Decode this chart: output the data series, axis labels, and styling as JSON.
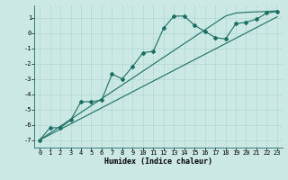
{
  "xlabel": "Humidex (Indice chaleur)",
  "bg_color": "#cce8e4",
  "line_color": "#1a6e64",
  "grid_color": "#b0d8d0",
  "spine_color": "#1a6e64",
  "xlim": [
    -0.5,
    23.5
  ],
  "ylim": [
    -7.5,
    1.8
  ],
  "xticks": [
    0,
    1,
    2,
    3,
    4,
    5,
    6,
    7,
    8,
    9,
    10,
    11,
    12,
    13,
    14,
    15,
    16,
    17,
    18,
    19,
    20,
    21,
    22,
    23
  ],
  "yticks": [
    -7,
    -6,
    -5,
    -4,
    -3,
    -2,
    -1,
    0,
    1
  ],
  "line1_x": [
    0,
    1,
    2,
    3,
    4,
    5,
    6,
    7,
    8,
    9,
    10,
    11,
    12,
    13,
    14,
    15,
    16,
    17,
    18,
    19,
    20,
    21,
    22,
    23
  ],
  "line1_y": [
    -7.0,
    -6.2,
    -6.2,
    -5.7,
    -4.5,
    -4.5,
    -4.4,
    -2.7,
    -3.0,
    -2.2,
    -1.3,
    -1.2,
    0.3,
    1.1,
    1.1,
    0.5,
    0.1,
    -0.3,
    -0.4,
    0.6,
    0.7,
    0.9,
    1.3,
    1.4
  ],
  "line2_x": [
    0,
    1,
    2,
    3,
    4,
    5,
    6,
    7,
    8,
    9,
    10,
    11,
    12,
    13,
    14,
    15,
    16,
    17,
    18,
    19,
    20,
    21,
    22,
    23
  ],
  "line2_y": [
    -7.0,
    -6.65,
    -6.3,
    -5.95,
    -5.6,
    -5.25,
    -4.9,
    -4.55,
    -4.2,
    -3.85,
    -3.5,
    -3.15,
    -2.8,
    -2.45,
    -2.1,
    -1.75,
    -1.4,
    -1.05,
    -0.7,
    -0.35,
    0.0,
    0.35,
    0.7,
    1.05
  ],
  "line3_x": [
    0,
    1,
    2,
    3,
    4,
    5,
    6,
    7,
    8,
    9,
    10,
    11,
    12,
    13,
    14,
    15,
    16,
    17,
    18,
    19,
    20,
    21,
    22,
    23
  ],
  "line3_y": [
    -7.0,
    -6.55,
    -6.1,
    -5.65,
    -5.2,
    -4.75,
    -4.3,
    -3.85,
    -3.4,
    -2.95,
    -2.5,
    -2.05,
    -1.6,
    -1.15,
    -0.7,
    -0.25,
    0.2,
    0.65,
    1.1,
    1.3,
    1.35,
    1.38,
    1.4,
    1.45
  ]
}
